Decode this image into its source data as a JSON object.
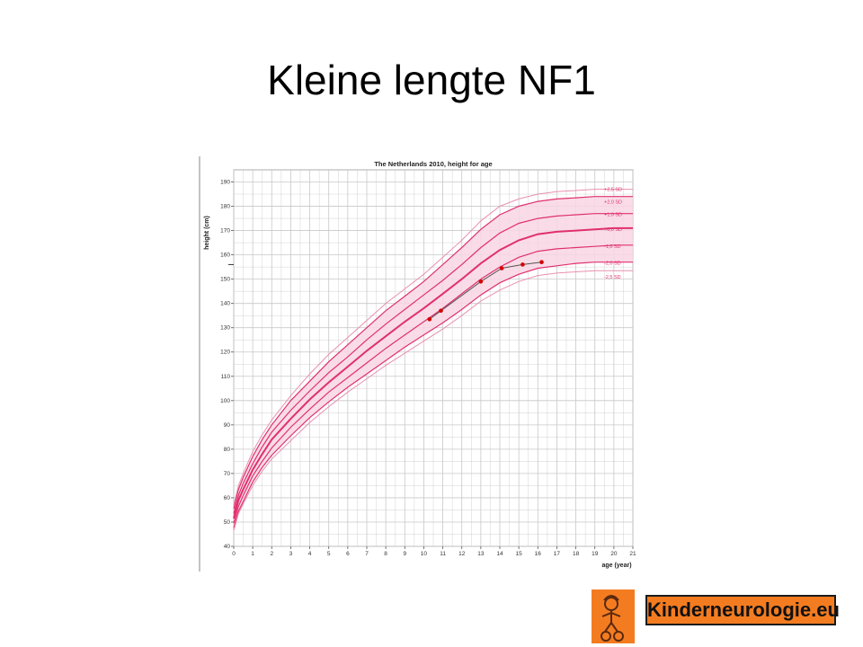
{
  "slide": {
    "title": "Kleine lengte NF1"
  },
  "logo": {
    "text": "Kinderneurologie.eu"
  },
  "colors": {
    "curve": "#e0306e",
    "curve_light": "#e890b0",
    "band_fill": "#f8d6e3",
    "patient": "#d40000",
    "grid": "#c8c8c8",
    "logo_bg": "#f47c20"
  },
  "chart_data": {
    "type": "line",
    "title": "The Netherlands 2010, height for age",
    "xlabel": "age (year)",
    "ylabel": "height (cm)",
    "xlim": [
      0,
      21
    ],
    "ylim": [
      40,
      195
    ],
    "x_ticks": [
      "0",
      "1",
      "2",
      "3",
      "4",
      "5",
      "6",
      "7",
      "8",
      "9",
      "10",
      "11",
      "12",
      "13",
      "14",
      "15",
      "16",
      "17",
      "18",
      "19",
      "20",
      "21"
    ],
    "y_ticks": [
      "40",
      "50",
      "60",
      "70",
      "80",
      "90",
      "100",
      "110",
      "120",
      "130",
      "140",
      "150",
      "160",
      "170",
      "180",
      "190"
    ],
    "x_minor_step": 0.5,
    "y_minor_step": 5,
    "grid": true,
    "shaded_band": [
      "-2,0 SD",
      "+2,0 SD"
    ],
    "x": [
      0,
      0.25,
      0.5,
      1,
      1.5,
      2,
      3,
      4,
      5,
      6,
      7,
      8,
      9,
      10,
      11,
      12,
      13,
      14,
      15,
      16,
      17,
      18,
      19,
      20,
      21
    ],
    "series": [
      {
        "name": "+2,5 SD",
        "values": [
          57,
          65,
          70,
          79,
          86,
          92,
          102,
          111,
          119,
          126,
          133,
          140,
          146,
          152,
          159,
          166,
          174,
          180,
          183,
          185,
          186,
          186.5,
          187,
          187,
          187
        ]
      },
      {
        "name": "+2,0 SD",
        "values": [
          55.5,
          63.5,
          68.5,
          77,
          84,
          90,
          100,
          108,
          116,
          123,
          130,
          137,
          143,
          149,
          156,
          163,
          170.5,
          176.5,
          180,
          182,
          183,
          183.5,
          184,
          184,
          184
        ]
      },
      {
        "name": "+1,0 SD",
        "values": [
          53.5,
          61,
          66,
          74,
          81,
          87,
          96,
          104,
          111.5,
          118,
          125,
          131.5,
          137.5,
          143.5,
          149.5,
          156,
          163,
          169,
          173,
          175,
          176,
          176.5,
          177,
          177,
          177
        ]
      },
      {
        "name": "+0,0 SD",
        "values": [
          51.5,
          59,
          63.5,
          71.5,
          78,
          84,
          92.5,
          100.5,
          107.5,
          114,
          120.5,
          126.5,
          132.5,
          138,
          144,
          150,
          156.5,
          162,
          166,
          168.5,
          169.5,
          170,
          170.5,
          171,
          171
        ]
      },
      {
        "name": "-1,0 SD",
        "values": [
          49.5,
          56.5,
          61,
          69,
          75,
          80.5,
          89,
          96.5,
          103.5,
          109.5,
          115.5,
          121.5,
          127,
          132.5,
          138,
          144,
          150,
          155,
          159,
          161.5,
          162.5,
          163,
          163.5,
          164,
          164
        ]
      },
      {
        "name": "-2,0 SD",
        "values": [
          47.5,
          54.5,
          58.5,
          66.5,
          72.5,
          77.5,
          85.5,
          93,
          99.5,
          105.5,
          111,
          116.5,
          122,
          127,
          132,
          137.5,
          143.5,
          148.5,
          152,
          154.5,
          155.5,
          156.5,
          157,
          157,
          157
        ]
      },
      {
        "name": "-2,5 SD",
        "values": [
          46.5,
          53.5,
          57.5,
          65,
          71,
          76,
          83.5,
          91,
          97.5,
          103.5,
          109,
          114.5,
          119.5,
          124.5,
          129.5,
          135,
          141,
          145.5,
          149,
          151.5,
          152.5,
          153,
          153.5,
          153.5,
          153.5
        ]
      }
    ],
    "patient": {
      "x": [
        10.3,
        10.9,
        13.0,
        14.1,
        15.2,
        16.2
      ],
      "y": [
        133.5,
        137,
        149,
        154.5,
        156,
        157
      ]
    },
    "target_height_marker": 156
  }
}
